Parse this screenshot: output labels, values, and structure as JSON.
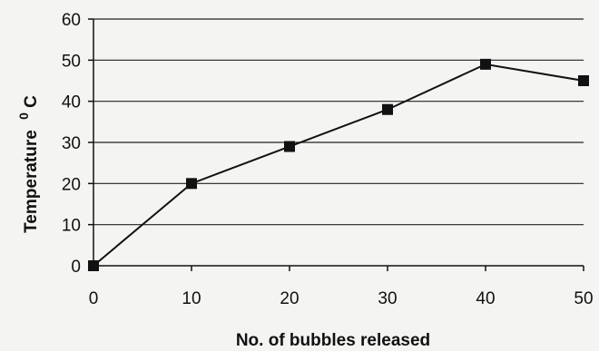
{
  "chart_data": {
    "type": "line",
    "title": "",
    "xlabel": "No. of bubbles released",
    "ylabel": "Temperature",
    "ylabel_superscript": "0",
    "ylabel_unit": "C",
    "x": [
      0,
      10,
      20,
      30,
      40,
      50
    ],
    "series": [
      {
        "values": [
          0,
          20,
          29,
          38,
          49,
          45
        ],
        "color": "#111111",
        "marker": "square"
      }
    ],
    "xlim": [
      0,
      50
    ],
    "ylim": [
      0,
      60
    ],
    "xticks": [
      "0",
      "10",
      "20",
      "30",
      "40",
      "50"
    ],
    "yticks": [
      "0",
      "10",
      "20",
      "30",
      "40",
      "50",
      "60"
    ],
    "grid": "horizontal",
    "legend": "none"
  }
}
